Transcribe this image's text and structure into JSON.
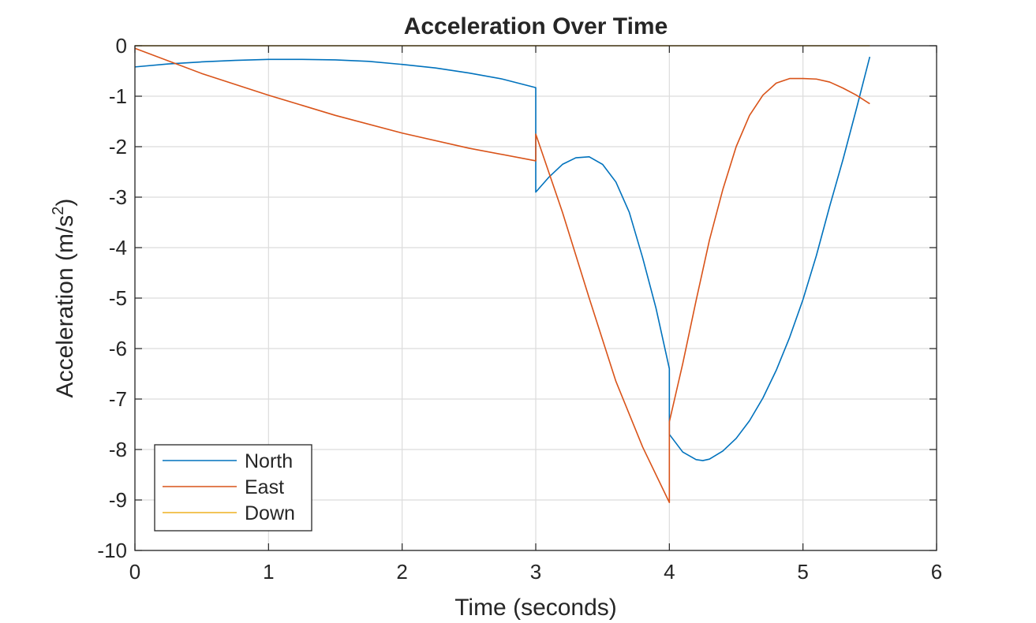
{
  "chart_data": {
    "type": "line",
    "title": "Acceleration Over Time",
    "xlabel": "Time (seconds)",
    "ylabel_main": "Acceleration  (m/s",
    "ylabel_sup": "2",
    "ylabel_close": ")",
    "xlim": [
      0,
      6
    ],
    "ylim": [
      -10,
      0
    ],
    "xticks": [
      0,
      1,
      2,
      3,
      4,
      5,
      6
    ],
    "xtick_labels": [
      "0",
      "1",
      "2",
      "3",
      "4",
      "5",
      "6"
    ],
    "yticks": [
      0,
      -1,
      -2,
      -3,
      -4,
      -5,
      -6,
      -7,
      -8,
      -9,
      -10
    ],
    "ytick_labels": [
      "0",
      "-1",
      "-2",
      "-3",
      "-4",
      "-5",
      "-6",
      "-7",
      "-8",
      "-9",
      "-10"
    ],
    "grid": true,
    "legend_position": "bottom-left",
    "series": [
      {
        "name": "North",
        "color": "#0072BD",
        "x": [
          0,
          0.25,
          0.5,
          0.75,
          1.0,
          1.25,
          1.5,
          1.75,
          2.0,
          2.25,
          2.5,
          2.75,
          3.0,
          3.0,
          3.1,
          3.2,
          3.3,
          3.4,
          3.5,
          3.6,
          3.7,
          3.8,
          3.9,
          4.0,
          4.0,
          4.1,
          4.2,
          4.25,
          4.3,
          4.4,
          4.5,
          4.6,
          4.7,
          4.8,
          4.9,
          5.0,
          5.1,
          5.2,
          5.3,
          5.4,
          5.5
        ],
        "y": [
          -0.42,
          -0.36,
          -0.32,
          -0.29,
          -0.27,
          -0.27,
          -0.28,
          -0.31,
          -0.37,
          -0.44,
          -0.54,
          -0.66,
          -0.83,
          -2.9,
          -2.6,
          -2.35,
          -2.22,
          -2.2,
          -2.35,
          -2.7,
          -3.3,
          -4.2,
          -5.2,
          -6.4,
          -7.7,
          -8.05,
          -8.2,
          -8.22,
          -8.19,
          -8.03,
          -7.78,
          -7.43,
          -6.98,
          -6.43,
          -5.78,
          -5.03,
          -4.16,
          -3.18,
          -2.25,
          -1.25,
          -0.22
        ]
      },
      {
        "name": "East",
        "color": "#D95319",
        "x": [
          0,
          0.5,
          1.0,
          1.5,
          2.0,
          2.5,
          3.0,
          3.0,
          3.2,
          3.4,
          3.6,
          3.8,
          4.0,
          4.0,
          4.1,
          4.2,
          4.3,
          4.4,
          4.5,
          4.6,
          4.7,
          4.8,
          4.9,
          5.0,
          5.1,
          5.2,
          5.3,
          5.4,
          5.5
        ],
        "y": [
          -0.05,
          -0.55,
          -0.98,
          -1.38,
          -1.73,
          -2.03,
          -2.28,
          -1.75,
          -3.3,
          -5.0,
          -6.65,
          -7.95,
          -9.05,
          -7.45,
          -6.3,
          -5.05,
          -3.85,
          -2.85,
          -2.0,
          -1.38,
          -0.98,
          -0.74,
          -0.65,
          -0.65,
          -0.66,
          -0.72,
          -0.84,
          -0.98,
          -1.15
        ]
      },
      {
        "name": "Down",
        "color": "#EDB120",
        "x": [
          0,
          5.5
        ],
        "y": [
          0,
          0
        ]
      }
    ]
  }
}
